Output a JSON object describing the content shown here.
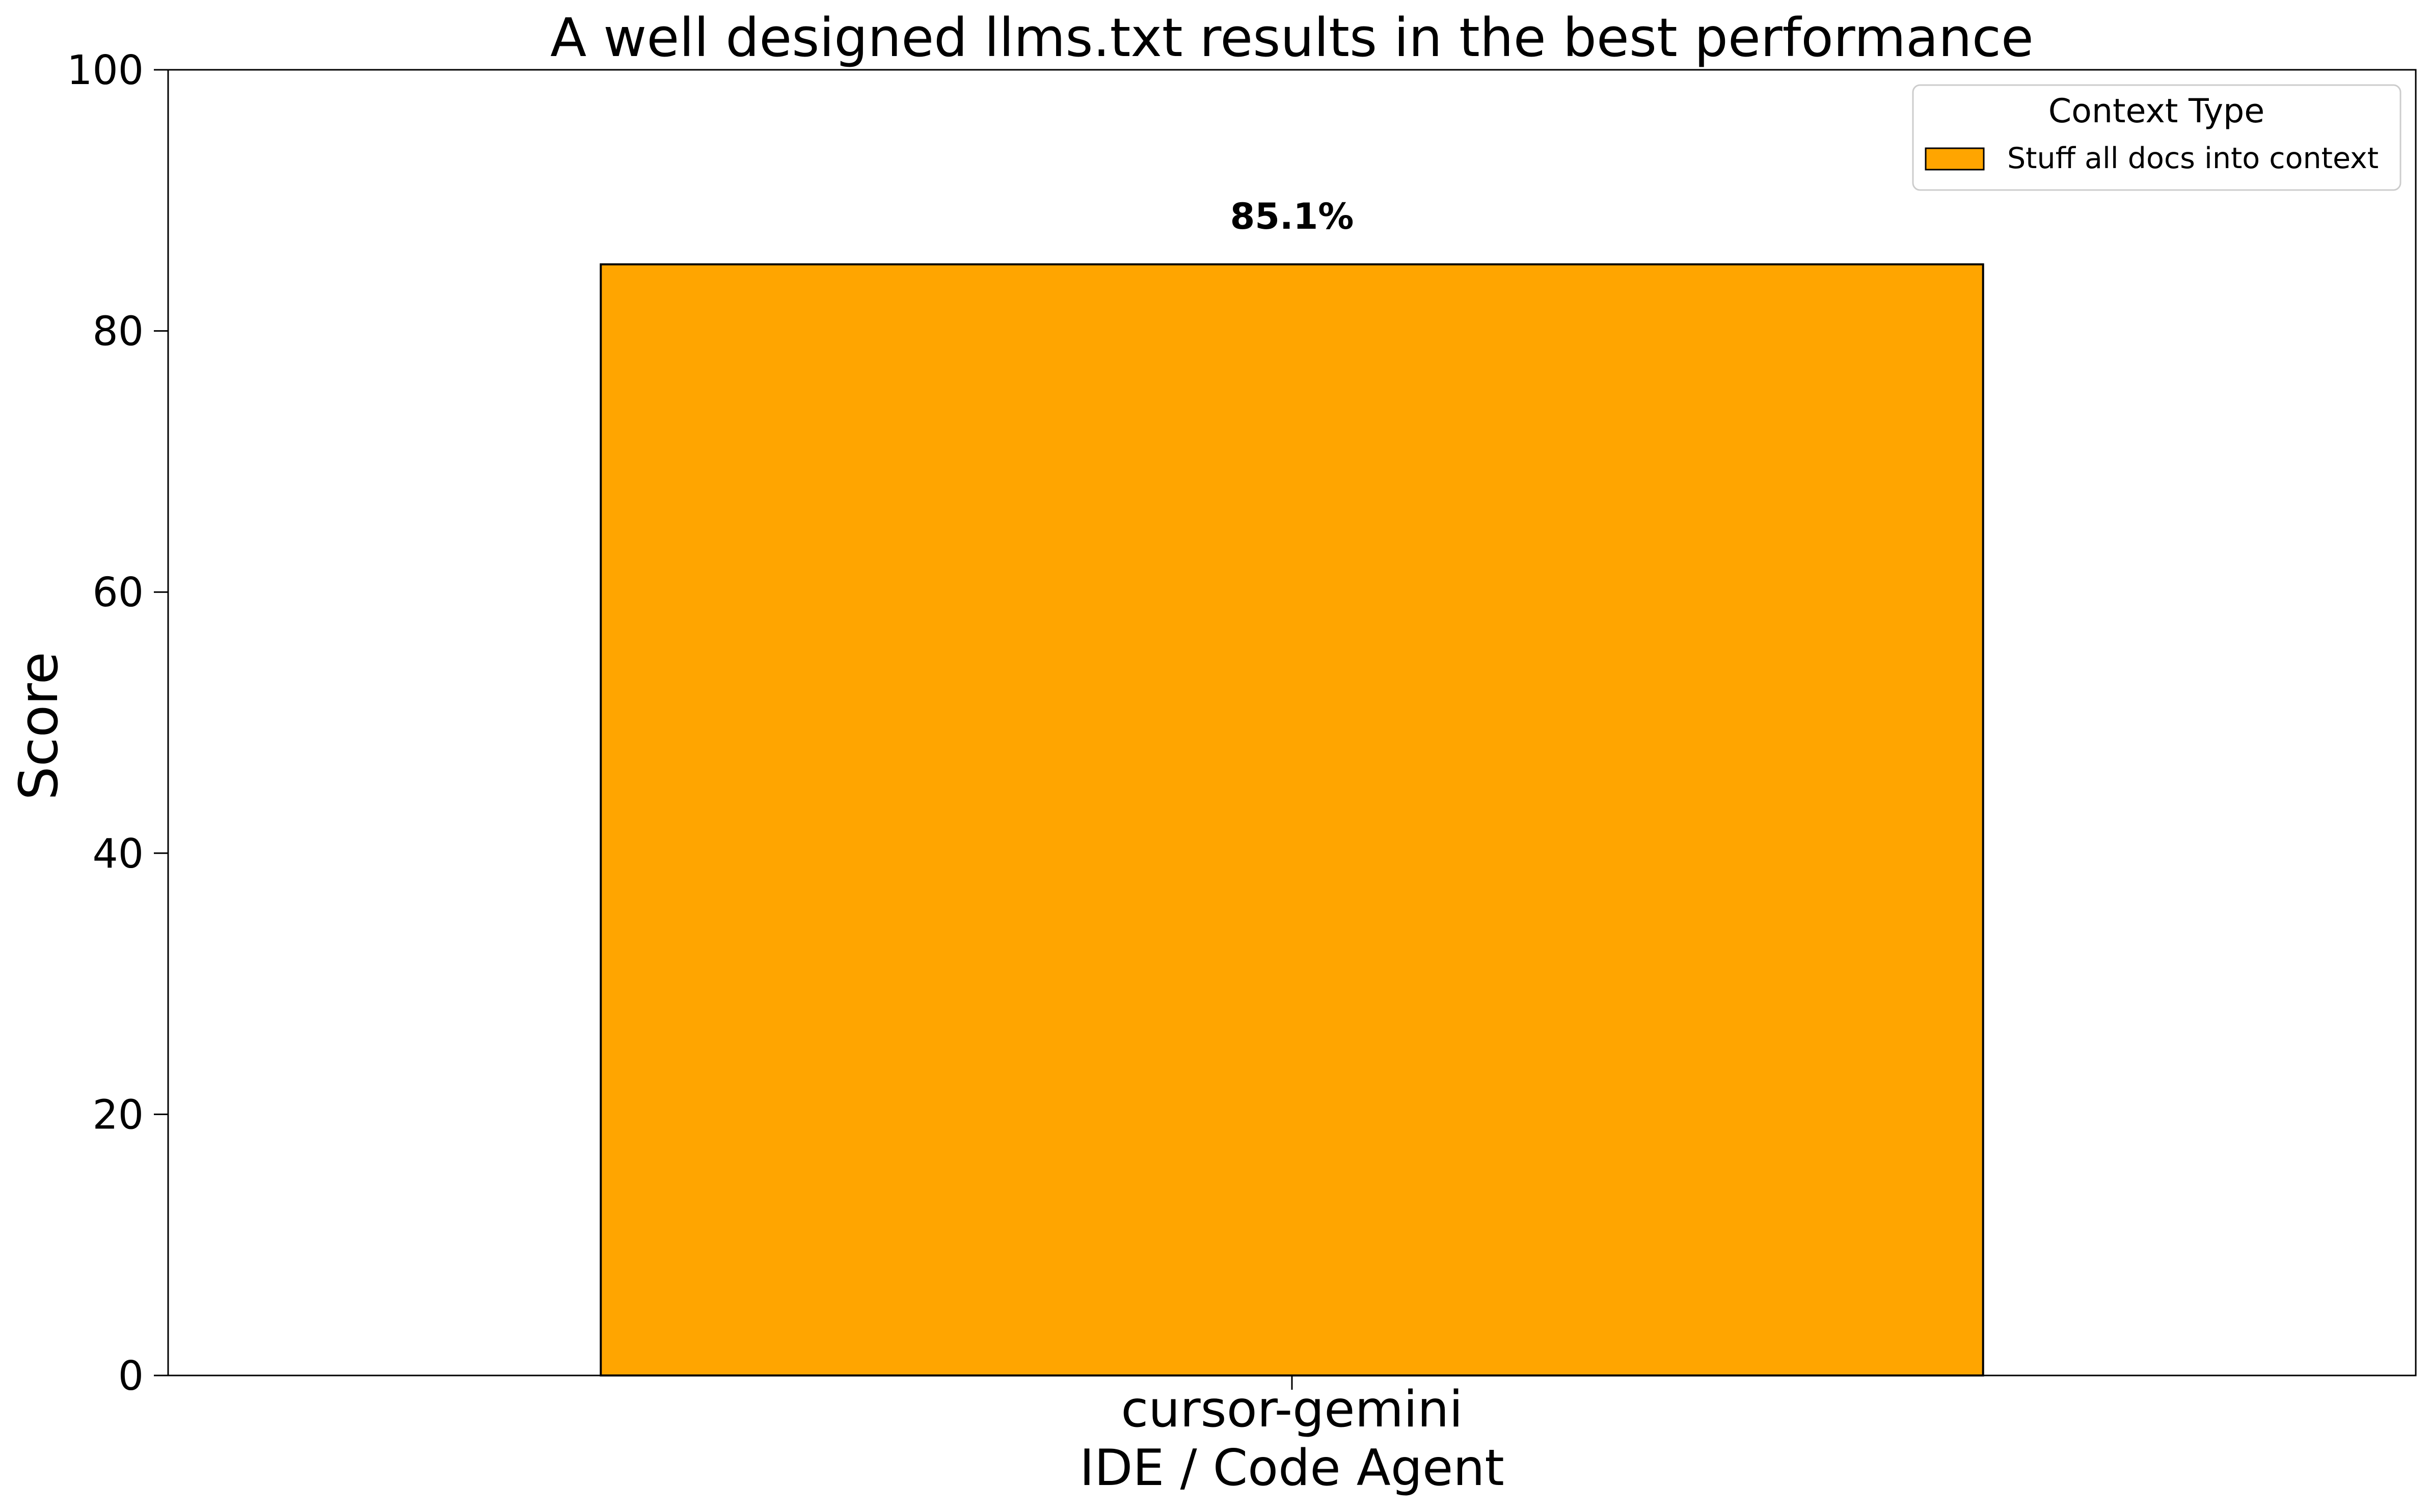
{
  "chart_data": {
    "type": "bar",
    "title": "A well designed llms.txt results in the best performance",
    "xlabel": "",
    "ylabel": "Score",
    "ylim": [
      0,
      100
    ],
    "yticks": [
      0,
      20,
      40,
      60,
      80,
      100
    ],
    "grid": false,
    "categories": [
      {
        "line1": "cursor-gemini",
        "line2": "IDE / Code Agent"
      }
    ],
    "series": [
      {
        "name": "Stuff all docs into context",
        "color": "#FFA500",
        "values": [
          85.1
        ],
        "labels": [
          "85.1%"
        ]
      }
    ],
    "legend": {
      "title": "Context Type",
      "placement": "top-right"
    }
  }
}
